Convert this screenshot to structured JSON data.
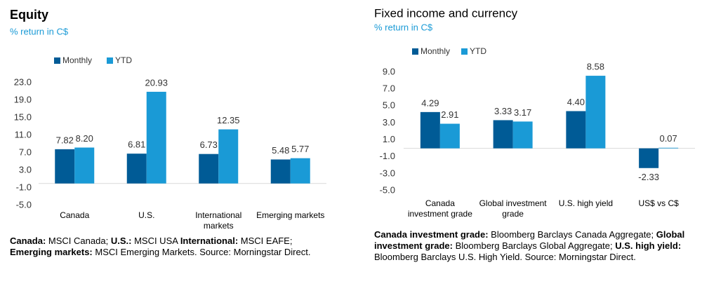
{
  "chart_data": [
    {
      "type": "bar",
      "title": "Equity",
      "subtitle": "% return in C$",
      "categories": [
        "Canada",
        "U.S.",
        "International markets",
        "Emerging markets"
      ],
      "series": [
        {
          "name": "Monthly",
          "color": "#005b96",
          "values": [
            7.82,
            6.81,
            6.73,
            5.48
          ],
          "value_labels": [
            "7.82",
            "6.81",
            "6.73",
            "5.48"
          ]
        },
        {
          "name": "YTD",
          "color": "#1a9ad6",
          "values": [
            8.2,
            20.93,
            12.35,
            5.77
          ],
          "value_labels": [
            "8.20",
            "20.93",
            "12.35",
            "5.77"
          ]
        }
      ],
      "ylim": [
        -5,
        23
      ],
      "yticks": [
        {
          "value": 23,
          "label": "23.0"
        },
        {
          "value": 19,
          "label": "19.0"
        },
        {
          "value": 15,
          "label": "15.0"
        },
        {
          "value": 11,
          "label": "11.0"
        },
        {
          "value": 7,
          "label": "7.0"
        },
        {
          "value": 3,
          "label": "3.0"
        },
        {
          "value": -1,
          "label": "-1.0"
        },
        {
          "value": -5,
          "label": "-5.0"
        }
      ],
      "notes": [
        {
          "term": "Canada:",
          "text": "MSCI Canada;"
        },
        {
          "term": "U.S.:",
          "text": "MSCI USA"
        },
        {
          "term": "International:",
          "text": "MSCI EAFE;"
        },
        {
          "term": "Emerging markets:",
          "text": "MSCI Emerging Markets. Source: Morningstar Direct."
        }
      ]
    },
    {
      "type": "bar",
      "title": "Fixed income and currency",
      "subtitle": "% return in C$",
      "categories": [
        "Canada investment grade",
        "Global investment grade",
        "U.S. high yield",
        "US$ vs C$"
      ],
      "series": [
        {
          "name": "Monthly",
          "color": "#005b96",
          "values": [
            4.29,
            3.33,
            4.4,
            -2.33
          ],
          "value_labels": [
            "4.29",
            "3.33",
            "4.40",
            "-2.33"
          ]
        },
        {
          "name": "YTD",
          "color": "#1a9ad6",
          "values": [
            2.91,
            3.17,
            8.58,
            0.07
          ],
          "value_labels": [
            "2.91",
            "3.17",
            "8.58",
            "0.07"
          ]
        }
      ],
      "ylim": [
        -5,
        9
      ],
      "yticks": [
        {
          "value": 9,
          "label": "9.0"
        },
        {
          "value": 7,
          "label": "7.0"
        },
        {
          "value": 5,
          "label": "5.0"
        },
        {
          "value": 3,
          "label": "3.0"
        },
        {
          "value": 1,
          "label": "1.0"
        },
        {
          "value": -1,
          "label": "-1.0"
        },
        {
          "value": -3,
          "label": "-3.0"
        },
        {
          "value": -5,
          "label": "-5.0"
        }
      ],
      "notes": [
        {
          "term": "Canada investment grade:",
          "text": "Bloomberg Barclays Canada Aggregate;"
        },
        {
          "term": "Global investment grade:",
          "text": "Bloomberg Barclays Global Aggregate;"
        },
        {
          "term": "U.S. high yield:",
          "text": "Bloomberg Barclays U.S. High Yield. Source: Morningstar Direct."
        }
      ]
    }
  ]
}
